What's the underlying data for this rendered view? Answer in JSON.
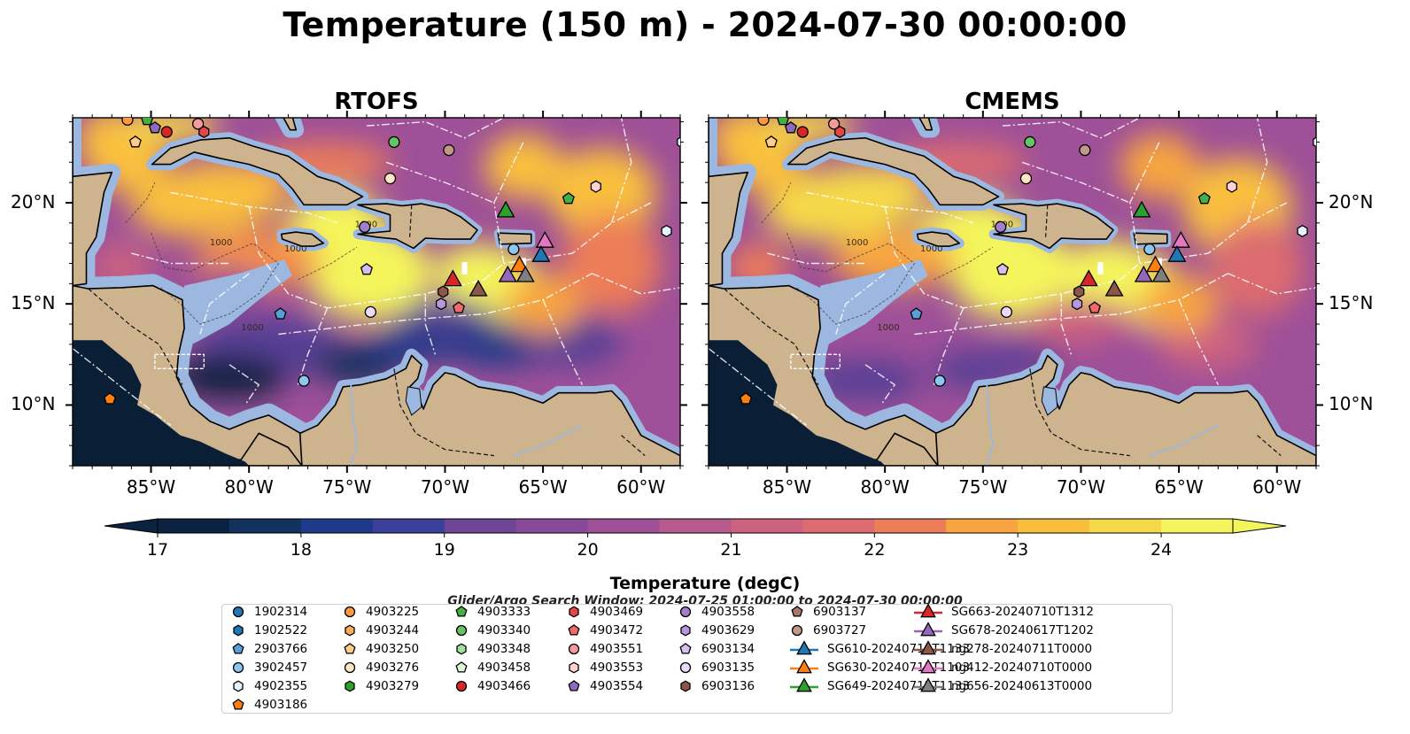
{
  "title": "Temperature (150 m) - 2024-07-30 00:00:00",
  "panels": [
    {
      "title": "RTOFS"
    },
    {
      "title": "CMEMS"
    }
  ],
  "axes": {
    "x_ticks": [
      "85°W",
      "80°W",
      "75°W",
      "70°W",
      "65°W",
      "60°W"
    ],
    "y_ticks": [
      "20°N",
      "15°N",
      "10°N"
    ]
  },
  "colorbar": {
    "label": "Temperature (degC)",
    "ticks": [
      "17",
      "18",
      "19",
      "20",
      "21",
      "22",
      "23",
      "24"
    ],
    "range": [
      17,
      24.5
    ],
    "extend": "both",
    "colormap": [
      "#0b2340",
      "#13315e",
      "#1f3a88",
      "#3a3f9a",
      "#563f95",
      "#6e4596",
      "#874a98",
      "#9e5098",
      "#b75a8d",
      "#cc6280",
      "#dc6c6f",
      "#ec7d58",
      "#f58f48",
      "#f8a541",
      "#f9bf3c",
      "#f5d949",
      "#f4f55c"
    ]
  },
  "contour_labels": [
    "1000",
    "1000",
    "1000",
    "1000"
  ],
  "search_window": "Glider/Argo Search Window: 2024-07-25 01:00:00 to 2024-07-30 00:00:00",
  "legend": {
    "items": [
      {
        "label": "1902314",
        "marker": "circle",
        "color": "#1f77b4"
      },
      {
        "label": "1902522",
        "marker": "hexagon",
        "color": "#1f77b4"
      },
      {
        "label": "2903766",
        "marker": "pentagon",
        "color": "#5aa0d6"
      },
      {
        "label": "3902457",
        "marker": "circle",
        "color": "#8ec7ee"
      },
      {
        "label": "4902355",
        "marker": "hexagon",
        "color": "#e3f2ff"
      },
      {
        "label": "4903186",
        "marker": "pentagon",
        "color": "#ff7f0e"
      },
      {
        "label": "4903225",
        "marker": "circle",
        "color": "#ff9940"
      },
      {
        "label": "4903244",
        "marker": "hexagon",
        "color": "#ffaa55"
      },
      {
        "label": "4903250",
        "marker": "pentagon",
        "color": "#ffcc8a"
      },
      {
        "label": "4903276",
        "marker": "circle",
        "color": "#ffe4c8"
      },
      {
        "label": "4903279",
        "marker": "hexagon",
        "color": "#2ca02c"
      },
      {
        "label": "4903333",
        "marker": "pentagon",
        "color": "#44b044"
      },
      {
        "label": "4903340",
        "marker": "circle",
        "color": "#66c466"
      },
      {
        "label": "4903348",
        "marker": "hexagon",
        "color": "#9ee09e"
      },
      {
        "label": "4903458",
        "marker": "pentagon",
        "color": "#ddf7d8"
      },
      {
        "label": "4903466",
        "marker": "circle",
        "color": "#d62728"
      },
      {
        "label": "4903469",
        "marker": "hexagon",
        "color": "#e34646"
      },
      {
        "label": "4903472",
        "marker": "pentagon",
        "color": "#ef6a6a"
      },
      {
        "label": "4903551",
        "marker": "circle",
        "color": "#f59a9a"
      },
      {
        "label": "4903553",
        "marker": "hexagon",
        "color": "#fcd2d2"
      },
      {
        "label": "4903554",
        "marker": "pentagon",
        "color": "#8e6bbf"
      },
      {
        "label": "4903558",
        "marker": "circle",
        "color": "#a07fcc"
      },
      {
        "label": "4903629",
        "marker": "hexagon",
        "color": "#b898dd"
      },
      {
        "label": "6903134",
        "marker": "pentagon",
        "color": "#d6bff0"
      },
      {
        "label": "6903135",
        "marker": "circle",
        "color": "#ecd9fb"
      },
      {
        "label": "6903136",
        "marker": "hexagon",
        "color": "#8c564b"
      },
      {
        "label": "6903137",
        "marker": "pentagon",
        "color": "#a9766a"
      },
      {
        "label": "6903727",
        "marker": "circle",
        "color": "#c39888"
      },
      {
        "label": "SG610-20240711T1133",
        "marker": "triangle",
        "color": "#1f77b4"
      },
      {
        "label": "SG630-20240713T1103",
        "marker": "triangle",
        "color": "#ff7f0e"
      },
      {
        "label": "SG649-20240712T1133",
        "marker": "triangle",
        "color": "#2ca02c"
      },
      {
        "label": "SG663-20240710T1312",
        "marker": "triangle",
        "color": "#d62728"
      },
      {
        "label": "SG678-20240617T1202",
        "marker": "triangle",
        "color": "#9467bd"
      },
      {
        "label": "ng278-20240711T0000",
        "marker": "triangle",
        "color": "#8c564b"
      },
      {
        "label": "ng412-20240710T0000",
        "marker": "triangle",
        "color": "#e377c2"
      },
      {
        "label": "ng656-20240613T0000",
        "marker": "triangle",
        "color": "#7f7f7f"
      }
    ]
  },
  "observations": [
    {
      "id": "4903225",
      "lon": -86.2,
      "lat": 24.1
    },
    {
      "id": "4903333",
      "lon": -85.2,
      "lat": 24.1
    },
    {
      "id": "4903250",
      "lon": -85.8,
      "lat": 23.0
    },
    {
      "id": "4903554",
      "lon": -84.8,
      "lat": 23.7
    },
    {
      "id": "4903466",
      "lon": -84.2,
      "lat": 23.5
    },
    {
      "id": "4903551",
      "lon": -82.6,
      "lat": 23.9
    },
    {
      "id": "4903469",
      "lon": -82.3,
      "lat": 23.5
    },
    {
      "id": "4903340",
      "lon": -72.6,
      "lat": 23.0
    },
    {
      "id": "6903727",
      "lon": -69.8,
      "lat": 22.6
    },
    {
      "id": "4903276",
      "lon": -72.8,
      "lat": 21.2
    },
    {
      "id": "4903553",
      "lon": -62.3,
      "lat": 20.8
    },
    {
      "id": "4903333",
      "lon": -63.7,
      "lat": 20.2
    },
    {
      "id": "SG649-20240712T1133",
      "lon": -66.9,
      "lat": 19.6
    },
    {
      "id": "4903558",
      "lon": -74.1,
      "lat": 18.8
    },
    {
      "id": "4902355",
      "lon": -58.7,
      "lat": 18.6
    },
    {
      "id": "3902457",
      "lon": -66.5,
      "lat": 17.7
    },
    {
      "id": "ng412-20240710T0000",
      "lon": -64.9,
      "lat": 18.1
    },
    {
      "id": "SG610-20240711T1133",
      "lon": -65.1,
      "lat": 17.4
    },
    {
      "id": "SG630-20240713T1103",
      "lon": -66.2,
      "lat": 16.9
    },
    {
      "id": "SG678-20240617T1202",
      "lon": -66.8,
      "lat": 16.4
    },
    {
      "id": "ng656-20240613T0000",
      "lon": -65.9,
      "lat": 16.4
    },
    {
      "id": "SG663-20240710T1312",
      "lon": -69.6,
      "lat": 16.2
    },
    {
      "id": "ng278-20240711T0000",
      "lon": -68.3,
      "lat": 15.7
    },
    {
      "id": "6903136",
      "lon": -70.1,
      "lat": 15.6
    },
    {
      "id": "4903629",
      "lon": -70.2,
      "lat": 15.0
    },
    {
      "id": "6903134",
      "lon": -74.0,
      "lat": 16.7
    },
    {
      "id": "6903135",
      "lon": -73.8,
      "lat": 14.6
    },
    {
      "id": "4903472",
      "lon": -69.3,
      "lat": 14.8
    },
    {
      "id": "2903766",
      "lon": -78.4,
      "lat": 14.5
    },
    {
      "id": "3902457",
      "lon": -77.2,
      "lat": 11.2
    },
    {
      "id": "4903186",
      "lon": -87.1,
      "lat": 10.3
    },
    {
      "id": "4902355",
      "lon": -57.9,
      "lat": 23.0
    }
  ]
}
